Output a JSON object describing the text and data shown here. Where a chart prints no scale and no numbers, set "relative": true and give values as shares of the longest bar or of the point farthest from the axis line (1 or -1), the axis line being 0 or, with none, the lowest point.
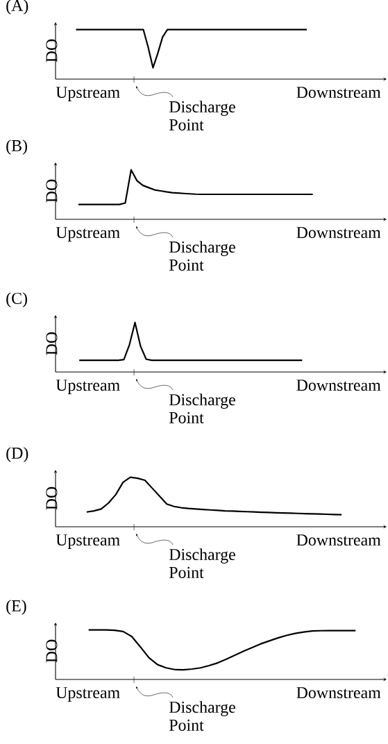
{
  "chart_data": [
    {
      "type": "line",
      "title": "(A)",
      "ylabel": "DO",
      "relative": true,
      "color": "#000000",
      "categories": [
        null,
        null,
        null,
        null,
        null,
        null,
        null,
        null,
        null,
        null,
        null,
        null,
        null,
        null,
        null,
        null,
        null,
        null,
        null,
        null,
        null,
        null,
        null,
        null,
        null,
        null,
        null,
        null,
        null,
        null,
        null,
        null,
        null,
        null,
        null,
        null,
        null,
        null,
        null,
        null,
        null,
        null,
        null,
        null,
        null,
        null,
        null,
        null,
        null
      ],
      "values": [
        1,
        1,
        1,
        1,
        1,
        1,
        1,
        1,
        1,
        1,
        1,
        1,
        1,
        1,
        1,
        0.645,
        0.23,
        0.52,
        0.85,
        1,
        1,
        1,
        1,
        1,
        1,
        1,
        1,
        1,
        1,
        1,
        1,
        1,
        1,
        1,
        1,
        1,
        1,
        1,
        1,
        1,
        1,
        1,
        1,
        1,
        1,
        1,
        1,
        1,
        1
      ],
      "annotations": [
        "Upstream",
        "Downstream",
        "Discharge Point"
      ]
    },
    {
      "type": "line",
      "title": "(B)",
      "ylabel": "DO",
      "relative": true,
      "color": "#000000",
      "categories": [
        null,
        null,
        null,
        null,
        null,
        null,
        null,
        null,
        null,
        null,
        null,
        null,
        null,
        null,
        null,
        null,
        null,
        null,
        null,
        null,
        null,
        null,
        null,
        null,
        null,
        null,
        null,
        null,
        null,
        null,
        null,
        null,
        null,
        null,
        null,
        null,
        null,
        null,
        null,
        null,
        null
      ],
      "values": [
        0.3,
        0.3,
        0.3,
        0.3,
        0.3,
        0.3,
        0.3,
        0.3,
        0.33,
        1,
        0.78,
        0.685,
        0.64,
        0.595,
        0.575,
        0.555,
        0.538,
        0.53,
        0.522,
        0.515,
        0.508,
        0.505,
        0.505,
        0.505,
        0.505,
        0.505,
        0.505,
        0.505,
        0.505,
        0.505,
        0.505,
        0.505,
        0.505,
        0.505,
        0.505,
        0.505,
        0.505,
        0.505,
        0.505,
        0.505,
        0.505
      ],
      "annotations": [
        "Upstream",
        "Downstream",
        "Discharge Point"
      ]
    },
    {
      "type": "line",
      "title": "(C)",
      "ylabel": "DO",
      "relative": true,
      "color": "#000000",
      "categories": [
        null,
        null,
        null,
        null,
        null,
        null,
        null,
        null,
        null,
        null,
        null,
        null,
        null,
        null,
        null,
        null,
        null,
        null,
        null,
        null,
        null,
        null,
        null,
        null,
        null,
        null,
        null,
        null,
        null,
        null,
        null,
        null,
        null,
        null,
        null,
        null,
        null,
        null,
        null,
        null,
        null
      ],
      "values": [
        0.236,
        0.236,
        0.236,
        0.236,
        0.236,
        0.236,
        0.236,
        0.236,
        0.25,
        0.55,
        1,
        0.52,
        0.26,
        0.236,
        0.236,
        0.236,
        0.236,
        0.236,
        0.236,
        0.236,
        0.236,
        0.236,
        0.236,
        0.236,
        0.236,
        0.236,
        0.236,
        0.236,
        0.236,
        0.236,
        0.236,
        0.236,
        0.236,
        0.236,
        0.236,
        0.236,
        0.236,
        0.236,
        0.236,
        0.236,
        0.236
      ],
      "annotations": [
        "Upstream",
        "Downstream",
        "Discharge Point"
      ]
    },
    {
      "type": "line",
      "title": "(D)",
      "ylabel": "DO",
      "relative": true,
      "color": "#000000",
      "categories": [
        null,
        null,
        null,
        null,
        null,
        null,
        null,
        null,
        null,
        null,
        null,
        null,
        null,
        null,
        null,
        null,
        null,
        null,
        null,
        null,
        null,
        null,
        null,
        null,
        null,
        null,
        null,
        null,
        null,
        null,
        null,
        null,
        null,
        null,
        null,
        null
      ],
      "values": [
        0.298,
        0.32,
        0.36,
        0.48,
        0.65,
        0.9,
        1,
        0.98,
        0.94,
        0.78,
        0.62,
        0.46,
        0.41,
        0.385,
        0.37,
        0.36,
        0.35,
        0.34,
        0.33,
        0.32,
        0.316,
        0.31,
        0.305,
        0.3,
        0.293,
        0.288,
        0.283,
        0.279,
        0.275,
        0.27,
        0.266,
        0.262,
        0.257,
        0.252,
        0.248,
        0.243
      ],
      "annotations": [
        "Upstream",
        "Downstream",
        "Discharge Point"
      ]
    },
    {
      "type": "line",
      "title": "(E)",
      "ylabel": "DO",
      "relative": true,
      "color": "#000000",
      "categories": [
        null,
        null,
        null,
        null,
        null,
        null,
        null,
        null,
        null,
        null,
        null,
        null,
        null,
        null,
        null,
        null,
        null,
        null,
        null,
        null,
        null,
        null,
        null,
        null,
        null,
        null,
        null,
        null,
        null,
        null,
        null,
        null
      ],
      "values": [
        1,
        1,
        1,
        0.995,
        0.97,
        0.87,
        0.66,
        0.44,
        0.3,
        0.235,
        0.2,
        0.195,
        0.21,
        0.235,
        0.28,
        0.335,
        0.41,
        0.49,
        0.57,
        0.645,
        0.72,
        0.78,
        0.84,
        0.89,
        0.93,
        0.96,
        0.98,
        0.985,
        0.987,
        0.987,
        0.987,
        0.986
      ],
      "annotations": [
        "Upstream",
        "Downstream",
        "Discharge Point"
      ]
    }
  ]
}
